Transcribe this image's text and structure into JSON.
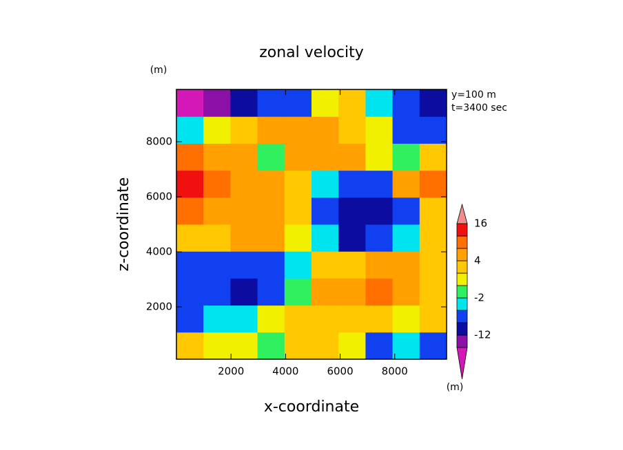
{
  "chart_data": {
    "type": "contour",
    "title": "zonal velocity",
    "x_label": "x-coordinate",
    "y_label": "z-coordinate",
    "x_unit": "(m)",
    "y_unit": "(m)",
    "annotations": [
      "y=100 m",
      "t=3400 sec"
    ],
    "xlim": [
      0,
      9900
    ],
    "ylim": [
      100,
      9900
    ],
    "xticks": [
      2000,
      4000,
      6000,
      8000
    ],
    "yticks": [
      2000,
      4000,
      6000,
      8000
    ],
    "x": [
      495,
      1485,
      2475,
      3465,
      4455,
      5445,
      6435,
      7425,
      8415,
      9405
    ],
    "y": [
      590,
      1570,
      2550,
      3530,
      4510,
      5490,
      6470,
      7450,
      8430,
      9410
    ],
    "z": [
      [
        2,
        0,
        0,
        -2,
        2,
        2,
        0,
        -5,
        -4,
        -6
      ],
      [
        -5,
        -4,
        -3,
        1,
        2,
        3,
        2,
        2,
        1,
        2
      ],
      [
        -6,
        -8,
        -11,
        -8,
        -1,
        5,
        6,
        8,
        5,
        2
      ],
      [
        -6,
        -6,
        -7,
        -5,
        -3,
        2,
        3,
        5,
        5,
        3
      ],
      [
        3,
        3,
        5,
        6,
        0,
        -4,
        -9,
        -8,
        -4,
        2
      ],
      [
        8,
        7,
        5,
        4,
        3,
        -8,
        -10,
        -10,
        -5,
        2
      ],
      [
        13,
        10,
        6,
        5,
        3,
        -4,
        -7,
        -5,
        6,
        9
      ],
      [
        10,
        6,
        6,
        -1,
        6,
        6,
        5,
        1,
        -2,
        3
      ],
      [
        -3,
        1,
        3,
        4,
        5,
        5,
        3,
        1,
        -5,
        -6
      ],
      [
        -17,
        -14,
        -9,
        -6,
        -5,
        1,
        2,
        -3,
        -6,
        -9
      ]
    ],
    "levels": [
      -16,
      -12,
      -8,
      -4,
      -2,
      0,
      2,
      4,
      8,
      12,
      16
    ],
    "colors": [
      "#d418b8",
      "#8c10a8",
      "#0c0ca0",
      "#1040f0",
      "#00e4f0",
      "#30f060",
      "#f0f000",
      "#ffc800",
      "#ffa000",
      "#ff7000",
      "#f01010",
      "#f08c8c"
    ],
    "colorbar_ticks": [
      16,
      4,
      -2,
      -12
    ]
  }
}
